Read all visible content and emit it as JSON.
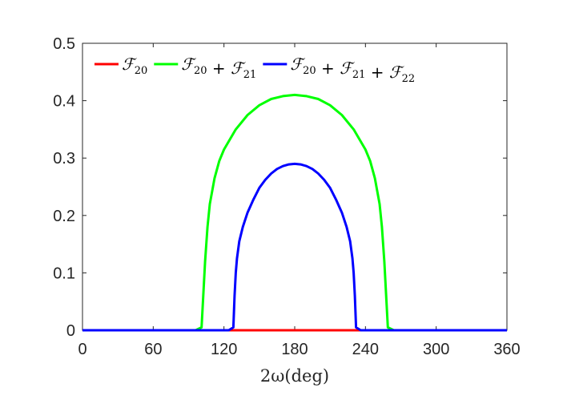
{
  "chart_data": {
    "type": "line",
    "xlabel": "2ω(deg)",
    "ylabel": "",
    "title": "",
    "xlim": [
      0,
      360
    ],
    "ylim": [
      0,
      0.5
    ],
    "xticks": [
      "0",
      "60",
      "120",
      "180",
      "240",
      "300",
      "360"
    ],
    "yticks": [
      "0",
      "0.1",
      "0.2",
      "0.3",
      "0.4",
      "0.5"
    ],
    "grid": false,
    "legend_placement": "top",
    "series": [
      {
        "name": "F20",
        "color": "#ff0000",
        "x": [
          0,
          60,
          120,
          125,
          180,
          235,
          240,
          300,
          360
        ],
        "y": [
          0,
          0,
          0,
          0,
          0,
          0,
          0,
          0,
          0
        ]
      },
      {
        "name": "F20 + F21",
        "color": "#00ff00",
        "x": [
          0,
          60,
          96,
          101,
          104,
          106,
          108,
          112,
          116,
          120,
          130,
          140,
          150,
          160,
          170,
          180,
          190,
          200,
          210,
          220,
          230,
          240,
          244,
          248,
          252,
          254,
          256,
          259,
          264,
          300,
          360
        ],
        "y": [
          0,
          0,
          0,
          0.005,
          0.12,
          0.18,
          0.22,
          0.265,
          0.295,
          0.315,
          0.35,
          0.375,
          0.392,
          0.403,
          0.408,
          0.41,
          0.408,
          0.403,
          0.392,
          0.375,
          0.35,
          0.315,
          0.295,
          0.265,
          0.22,
          0.18,
          0.12,
          0.005,
          0,
          0,
          0
        ]
      },
      {
        "name": "F20 + F21 + F22",
        "color": "#0000ff",
        "x": [
          0,
          60,
          124,
          128,
          129,
          130,
          131,
          133,
          136,
          140,
          145,
          150,
          155,
          160,
          165,
          170,
          175,
          180,
          185,
          190,
          195,
          200,
          205,
          210,
          215,
          220,
          224,
          227,
          229,
          230,
          231,
          232,
          236,
          300,
          360
        ],
        "y": [
          0,
          0,
          0,
          0.005,
          0.06,
          0.1,
          0.125,
          0.155,
          0.18,
          0.205,
          0.228,
          0.248,
          0.262,
          0.273,
          0.281,
          0.286,
          0.289,
          0.29,
          0.289,
          0.286,
          0.281,
          0.273,
          0.262,
          0.248,
          0.228,
          0.205,
          0.18,
          0.155,
          0.125,
          0.1,
          0.06,
          0.005,
          0,
          0,
          0
        ]
      }
    ]
  }
}
